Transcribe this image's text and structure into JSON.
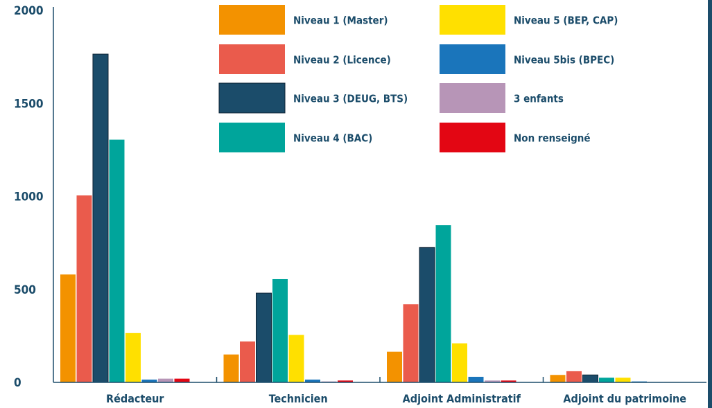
{
  "chart_data": {
    "type": "bar",
    "title": "",
    "xlabel": "",
    "ylabel": "",
    "ylim": [
      0,
      2000
    ],
    "yticks": [
      0,
      500,
      1000,
      1500,
      2000
    ],
    "grid": false,
    "legend_position": "top-center",
    "categories": [
      "Rédacteur",
      "Technicien",
      "Adjoint Administratif",
      "Adjoint du patrimoine"
    ],
    "series": [
      {
        "name": "Niveau 1 (Master)",
        "color": "#f39200",
        "values": [
          580,
          150,
          165,
          40
        ]
      },
      {
        "name": "Niveau 2 (Licence)",
        "color": "#ea5b4c",
        "values": [
          1005,
          220,
          420,
          60
        ]
      },
      {
        "name": "Niveau 3 (DEUG, BTS)",
        "color": "#1b4c6a",
        "values": [
          1765,
          480,
          725,
          40
        ]
      },
      {
        "name": "Niveau 4 (BAC)",
        "color": "#00a59b",
        "values": [
          1305,
          555,
          845,
          25
        ]
      },
      {
        "name": "Niveau 5 (BEP, CAP)",
        "color": "#ffe000",
        "values": [
          265,
          255,
          210,
          25
        ]
      },
      {
        "name": "Niveau 5bis (BPEC)",
        "color": "#1a75bb",
        "values": [
          15,
          15,
          30,
          5
        ]
      },
      {
        "name": "3 enfants",
        "color": "#b795b7",
        "values": [
          20,
          5,
          10,
          2
        ]
      },
      {
        "name": "Non renseigné",
        "color": "#e30613",
        "values": [
          20,
          10,
          10,
          2
        ]
      }
    ],
    "colors": {
      "text": "#1b4c6a",
      "axis": "#1b4c6a"
    }
  }
}
